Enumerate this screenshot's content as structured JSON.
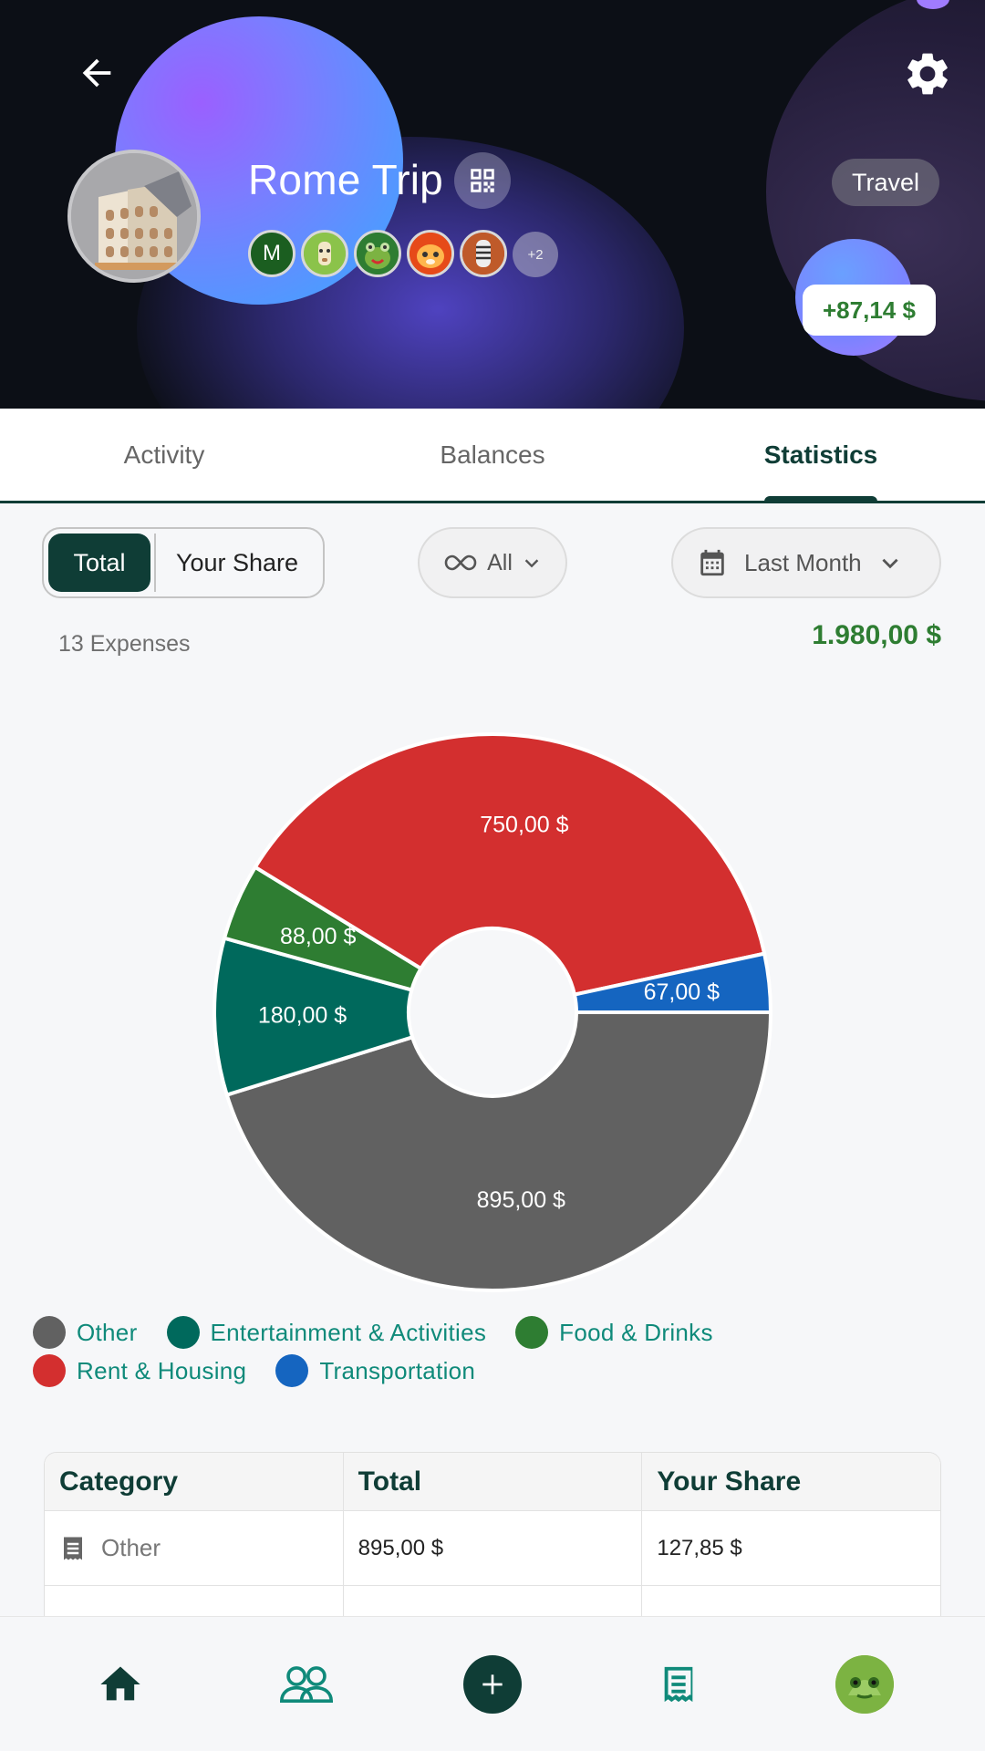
{
  "header": {
    "title": "Rome Trip",
    "tag": "Travel",
    "balance": "+87,14 $",
    "members_first_initial": "M",
    "members_more": "+2"
  },
  "tabs": [
    {
      "label": "Activity"
    },
    {
      "label": "Balances"
    },
    {
      "label": "Statistics"
    }
  ],
  "filters": {
    "segment_total": "Total",
    "segment_share": "Your Share",
    "all": "All",
    "date": "Last Month"
  },
  "summary": {
    "expense_count": "13 Expenses",
    "total": "1.980,00 $"
  },
  "chart_data": {
    "type": "pie",
    "donut": true,
    "categories": [
      "Other",
      "Entertainment & Activities",
      "Food & Drinks",
      "Rent & Housing",
      "Transportation"
    ],
    "values": [
      895,
      180,
      88,
      750,
      67
    ],
    "labels": [
      "895,00 $",
      "180,00 $",
      "88,00 $",
      "750,00 $",
      "67,00 $"
    ],
    "colors": [
      "#616161",
      "#00695c",
      "#2e7d32",
      "#d32f2f",
      "#1565c0"
    ],
    "legend_position": "bottom"
  },
  "legend": {
    "row1": [
      "Other",
      "Entertainment & Activities",
      "Food & Drinks"
    ],
    "row2": [
      "Rent & Housing",
      "Transportation"
    ]
  },
  "table": {
    "headers": [
      "Category",
      "Total",
      "Your Share"
    ],
    "rows": [
      {
        "category": "Other",
        "total": "895,00 $",
        "share": "127,85 $"
      }
    ]
  },
  "nav": {
    "items": [
      "home-icon",
      "groups-icon",
      "add-icon",
      "receipt-icon",
      "profile-avatar"
    ]
  }
}
